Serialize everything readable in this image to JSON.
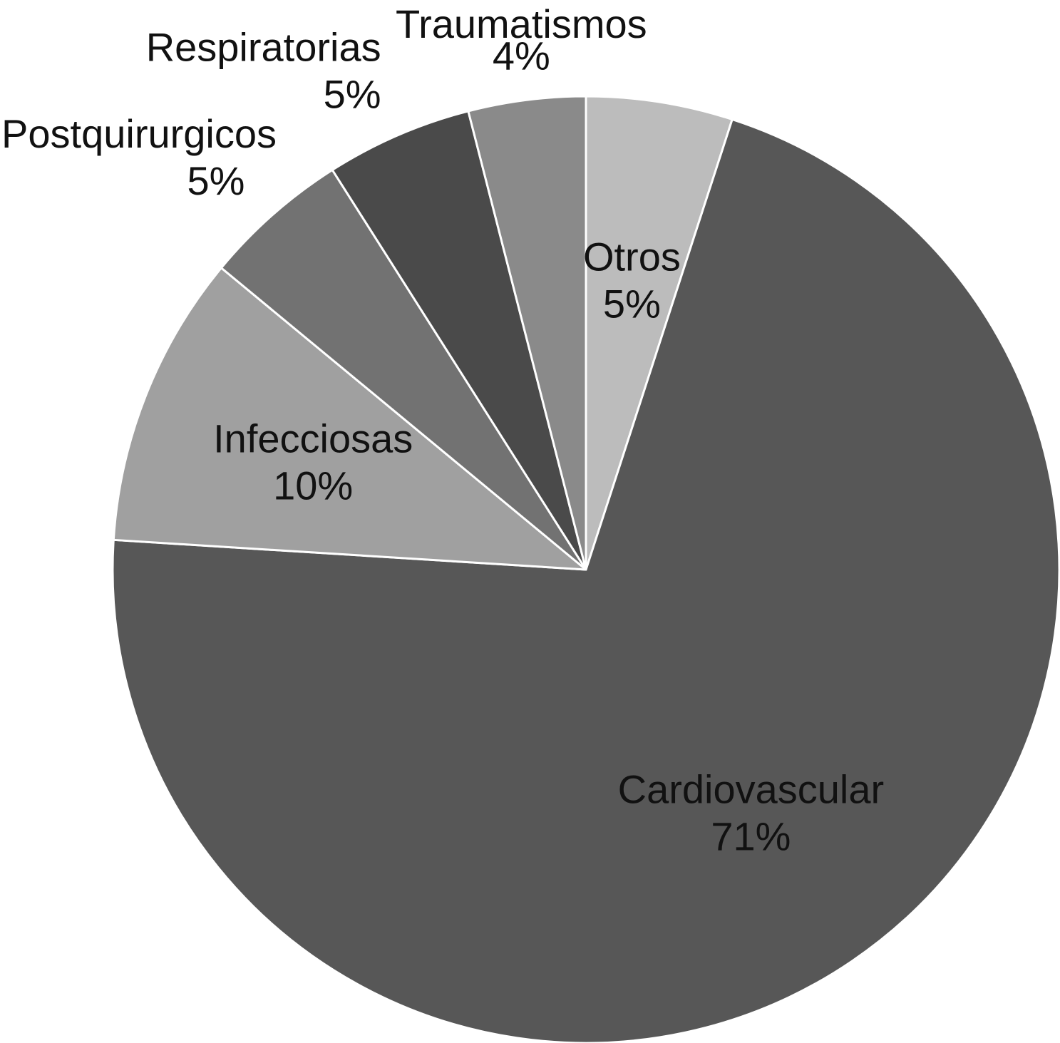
{
  "chart_data": {
    "type": "pie",
    "start_angle_deg": 0,
    "direction": "clockwise",
    "slices": [
      {
        "label": "Otros",
        "value": 5,
        "value_label": "5%",
        "color": "#bcbcbc",
        "label_placement": "inside"
      },
      {
        "label": "Cardiovascular",
        "value": 71,
        "value_label": "71%",
        "color": "#575757",
        "label_placement": "inside"
      },
      {
        "label": "Infecciosas",
        "value": 10,
        "value_label": "10%",
        "color": "#a0a0a0",
        "label_placement": "inside"
      },
      {
        "label": "Postquirurgicos",
        "value": 5,
        "value_label": "5%",
        "color": "#727272",
        "label_placement": "outside"
      },
      {
        "label": "Respiratorias",
        "value": 5,
        "value_label": "5%",
        "color": "#4a4a4a",
        "label_placement": "outside"
      },
      {
        "label": "Traumatismos",
        "value": 4,
        "value_label": "4%",
        "color": "#8a8a8a",
        "label_placement": "outside"
      }
    ]
  }
}
